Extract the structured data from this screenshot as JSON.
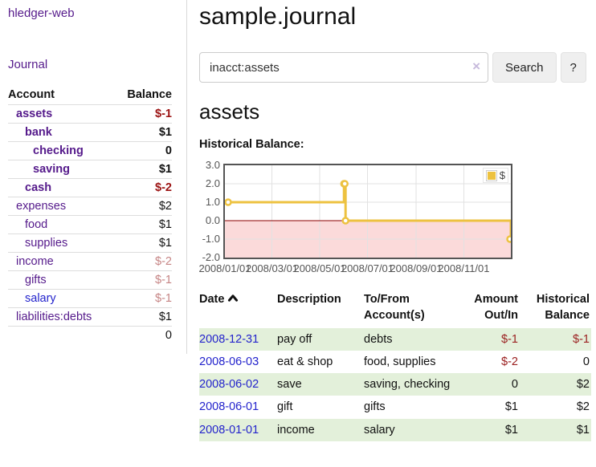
{
  "app": {
    "brand": "hledger-web"
  },
  "colors": {
    "link_purple": "#551a8b",
    "link_blue": "#2323cc",
    "negative_strong": "#9b1212",
    "negative_soft": "#c68585",
    "row_stripe_green": "#e3f0da",
    "chart_line_gold": "#edc240",
    "chart_negative_fill": "#fbdada",
    "chart_zero_line": "#8b0000"
  },
  "sidebar": {
    "journal_link": "Journal",
    "accounts_table": {
      "col_account": "Account",
      "col_balance": "Balance",
      "rows": [
        {
          "name": "assets",
          "balance": "$-1"
        },
        {
          "name": "bank",
          "balance": "$1"
        },
        {
          "name": "checking",
          "balance": "0"
        },
        {
          "name": "saving",
          "balance": "$1"
        },
        {
          "name": "cash",
          "balance": "$-2"
        },
        {
          "name": "expenses",
          "balance": "$2"
        },
        {
          "name": "food",
          "balance": "$1"
        },
        {
          "name": "supplies",
          "balance": "$1"
        },
        {
          "name": "income",
          "balance": "$-2"
        },
        {
          "name": "gifts",
          "balance": "$-1"
        },
        {
          "name": "salary",
          "balance": "$-1"
        },
        {
          "name": "liabilities:debts",
          "balance": "$1"
        }
      ],
      "total": "0"
    }
  },
  "main": {
    "title": "sample.journal",
    "search": {
      "value": "inacct:assets",
      "clear_label": "×",
      "submit_label": "Search",
      "help_label": "?"
    },
    "account_heading": "assets"
  },
  "chart_data": {
    "type": "line",
    "style": "step-after",
    "title": "Historical Balance:",
    "legend_position": "top-right",
    "grid": true,
    "ylim": [
      -2,
      3
    ],
    "x_range_days": [
      0,
      365
    ],
    "series": [
      {
        "name": "$",
        "points": [
          {
            "date": "2008/01/01",
            "day": 0,
            "value": 1
          },
          {
            "date": "2008/06/01",
            "day": 152,
            "value": 2
          },
          {
            "date": "2008/06/02",
            "day": 153,
            "value": 2
          },
          {
            "date": "2008/06/03",
            "day": 154,
            "value": 0
          },
          {
            "date": "2008/12/31",
            "day": 365,
            "value": -1
          }
        ]
      }
    ],
    "x_ticks": [
      {
        "label": "2008/01/01",
        "day": 0
      },
      {
        "label": "2008/03/01",
        "day": 60
      },
      {
        "label": "2008/05/01",
        "day": 121
      },
      {
        "label": "2008/07/01",
        "day": 182
      },
      {
        "label": "2008/09/01",
        "day": 244
      },
      {
        "label": "2008/11/01",
        "day": 305
      }
    ],
    "y_ticks": [
      {
        "label": "3.0",
        "value": 3
      },
      {
        "label": "2.0",
        "value": 2
      },
      {
        "label": "1.0",
        "value": 1
      },
      {
        "label": "0.0",
        "value": 0
      },
      {
        "label": "-1.0",
        "value": -1
      },
      {
        "label": "-2.0",
        "value": -2
      }
    ],
    "line_color": "#edc240",
    "negative_region_fill": "#fbdada",
    "zero_line_color": "#8b0000"
  },
  "register": {
    "columns": {
      "date": "Date",
      "description": "Description",
      "tofrom": "To/From Account(s)",
      "amount": "Amount Out/In",
      "balance": "Historical Balance"
    },
    "rows": [
      {
        "date": "2008-12-31",
        "description": "pay off",
        "accounts": "debts",
        "amount": "$-1",
        "balance": "$-1"
      },
      {
        "date": "2008-06-03",
        "description": "eat & shop",
        "accounts": "food, supplies",
        "amount": "$-2",
        "balance": "0"
      },
      {
        "date": "2008-06-02",
        "description": "save",
        "accounts": "saving, checking",
        "amount": "0",
        "balance": "$2"
      },
      {
        "date": "2008-06-01",
        "description": "gift",
        "accounts": "gifts",
        "amount": "$1",
        "balance": "$2"
      },
      {
        "date": "2008-01-01",
        "description": "income",
        "accounts": "salary",
        "amount": "$1",
        "balance": "$1"
      }
    ]
  }
}
